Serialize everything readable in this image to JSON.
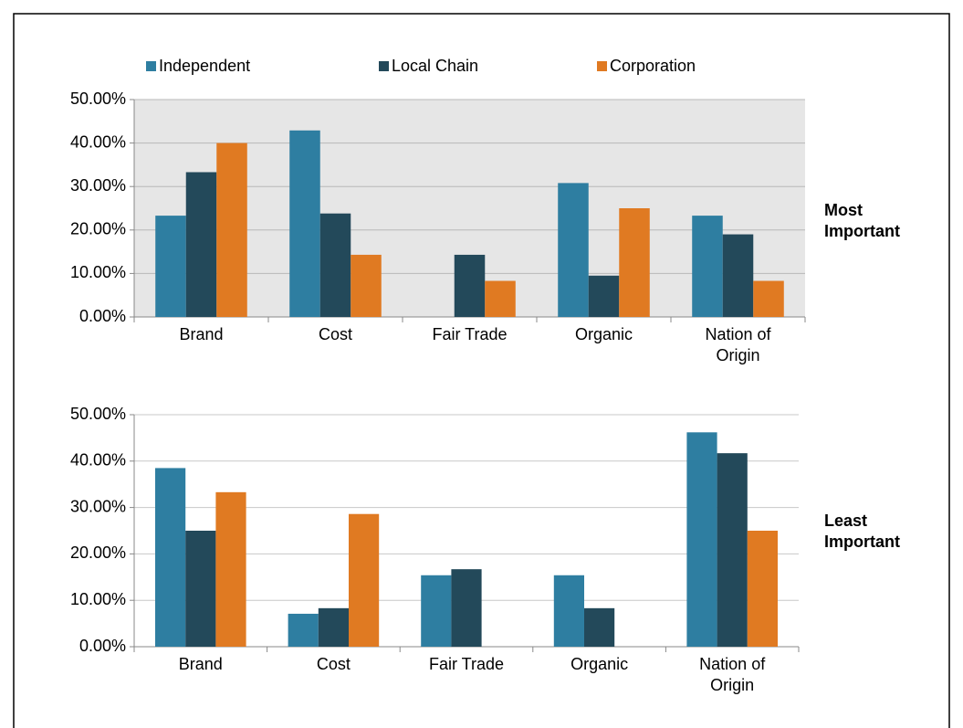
{
  "chart_data": [
    {
      "type": "bar",
      "label": "Most Important",
      "categories": [
        "Brand",
        "Cost",
        "Fair Trade",
        "Organic",
        "Nation of Origin"
      ],
      "series": [
        {
          "name": "Independent",
          "color": "#2e7ea1",
          "values": [
            23.3,
            42.9,
            0,
            30.8,
            23.3
          ]
        },
        {
          "name": "Local Chain",
          "color": "#23495a",
          "values": [
            33.3,
            23.8,
            14.3,
            9.5,
            19.0
          ]
        },
        {
          "name": "Corporation",
          "color": "#e07a22",
          "values": [
            40.0,
            14.3,
            8.3,
            25.0,
            8.3
          ]
        }
      ],
      "ylim": [
        0,
        50
      ],
      "yticks": [
        {
          "value": 0,
          "label": "0.00%"
        },
        {
          "value": 10,
          "label": "10.00%"
        },
        {
          "value": 20,
          "label": "20.00%"
        },
        {
          "value": 30,
          "label": "30.00%"
        },
        {
          "value": 40,
          "label": "40.00%"
        },
        {
          "value": 50,
          "label": "50.00%"
        }
      ],
      "grid": true
    },
    {
      "type": "bar",
      "label": "Least Important",
      "categories": [
        "Brand",
        "Cost",
        "Fair Trade",
        "Organic",
        "Nation of Origin"
      ],
      "series": [
        {
          "color": "#2e7ea1",
          "values": [
            38.5,
            7.1,
            15.4,
            15.4,
            46.2
          ]
        },
        {
          "color": "#23495a",
          "values": [
            25.0,
            8.3,
            16.7,
            8.3,
            41.7
          ]
        },
        {
          "color": "#e07a22",
          "values": [
            33.3,
            28.6,
            0,
            0,
            25.0
          ]
        }
      ],
      "ylim": [
        0,
        50
      ],
      "yticks": [
        {
          "value": 0,
          "label": "0.00%"
        },
        {
          "value": 10,
          "label": "10.00%"
        },
        {
          "value": 20,
          "label": "20.00%"
        },
        {
          "value": 30,
          "label": "30.00%"
        },
        {
          "value": 40,
          "label": "40.00%"
        },
        {
          "value": 50,
          "label": "50.00%"
        }
      ],
      "grid": true
    }
  ]
}
